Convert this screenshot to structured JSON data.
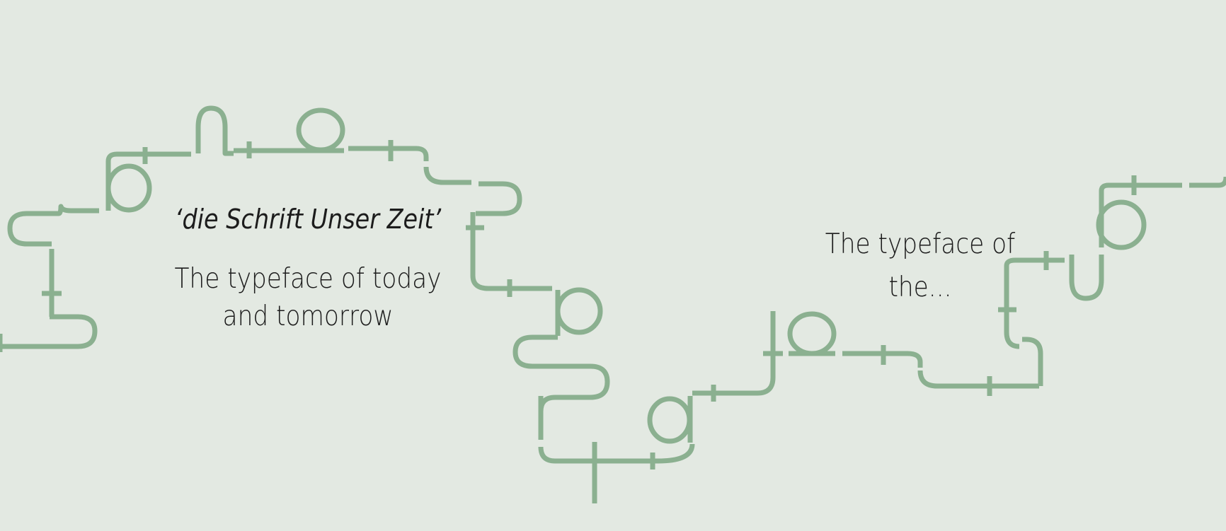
{
  "theme": {
    "background": "#e3e9e2",
    "path_color": "#8bb090",
    "text_color": "#1c1c1c"
  },
  "captions": {
    "quote": "‘die Schrift Unser Zeit’",
    "tagline_1_line_1": "The typeface of today",
    "tagline_1_line_2": "and tomorrow",
    "tagline_2_line_1": "The typeface of",
    "tagline_2_line_2": "the..."
  },
  "path_glyphs": [
    "b",
    "n",
    "o",
    "p",
    "r",
    "a",
    "o",
    "t",
    "u",
    "b"
  ],
  "icons": [
    "letter-path-decoration"
  ]
}
